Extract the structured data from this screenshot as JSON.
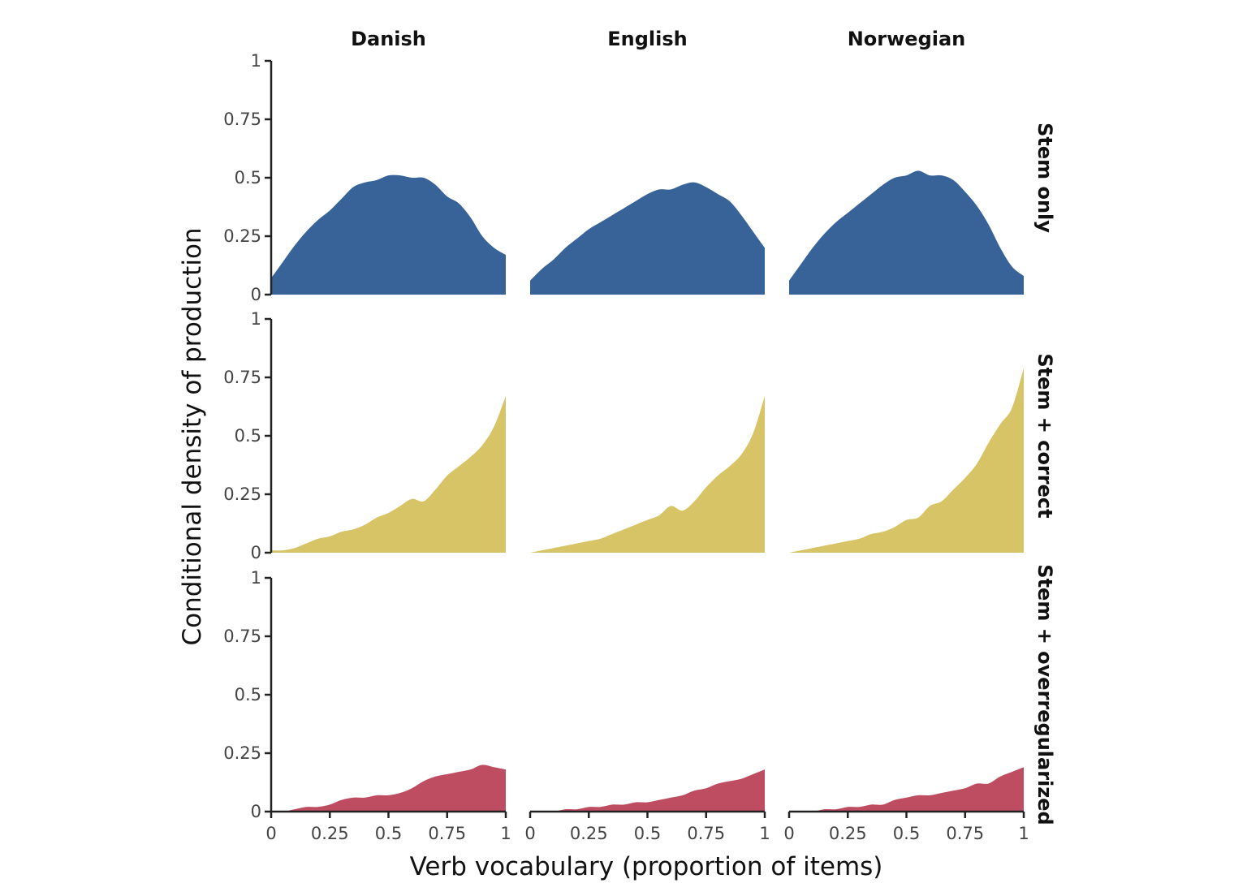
{
  "chart_data": {
    "type": "area",
    "subtype": "conditional density plot, faceted",
    "xlabel": "Verb vocabulary (proportion of items)",
    "ylabel": "Conditional density of production",
    "xlim": [
      0,
      1
    ],
    "ylim": [
      0,
      1
    ],
    "x_ticks": [
      "0",
      "0.25",
      "0.5",
      "0.75",
      "1"
    ],
    "y_ticks": [
      "0",
      "0.25",
      "0.5",
      "0.75",
      "1"
    ],
    "columns": [
      "Danish",
      "English",
      "Norwegian"
    ],
    "rows": [
      {
        "label": "Stem only",
        "color": "#386399"
      },
      {
        "label": "Stem + correct",
        "color": "#d6c466"
      },
      {
        "label": "Stem + overregularized",
        "color": "#be4d62"
      }
    ],
    "grid": false,
    "legend": "none",
    "x": [
      0,
      0.05,
      0.1,
      0.15,
      0.2,
      0.25,
      0.3,
      0.35,
      0.4,
      0.45,
      0.5,
      0.55,
      0.6,
      0.65,
      0.7,
      0.75,
      0.8,
      0.85,
      0.9,
      0.95,
      1
    ],
    "panels": {
      "Stem only": {
        "Danish": [
          0.07,
          0.14,
          0.21,
          0.27,
          0.32,
          0.36,
          0.41,
          0.46,
          0.48,
          0.49,
          0.51,
          0.51,
          0.5,
          0.5,
          0.47,
          0.42,
          0.39,
          0.33,
          0.25,
          0.2,
          0.17
        ],
        "English": [
          0.06,
          0.11,
          0.15,
          0.2,
          0.24,
          0.28,
          0.31,
          0.34,
          0.37,
          0.4,
          0.43,
          0.45,
          0.45,
          0.47,
          0.48,
          0.46,
          0.43,
          0.4,
          0.34,
          0.27,
          0.2
        ],
        "Norwegian": [
          0.06,
          0.13,
          0.2,
          0.26,
          0.31,
          0.35,
          0.39,
          0.43,
          0.47,
          0.5,
          0.51,
          0.53,
          0.51,
          0.51,
          0.49,
          0.44,
          0.38,
          0.3,
          0.2,
          0.12,
          0.08
        ]
      },
      "Stem + correct": {
        "Danish": [
          0.01,
          0.01,
          0.02,
          0.04,
          0.06,
          0.07,
          0.09,
          0.1,
          0.12,
          0.15,
          0.17,
          0.2,
          0.23,
          0.22,
          0.27,
          0.33,
          0.37,
          0.41,
          0.46,
          0.54,
          0.67
        ],
        "English": [
          0.0,
          0.01,
          0.02,
          0.03,
          0.04,
          0.05,
          0.06,
          0.08,
          0.1,
          0.12,
          0.14,
          0.16,
          0.2,
          0.18,
          0.22,
          0.28,
          0.33,
          0.37,
          0.42,
          0.51,
          0.67
        ],
        "Norwegian": [
          0.0,
          0.01,
          0.02,
          0.03,
          0.04,
          0.05,
          0.06,
          0.08,
          0.09,
          0.11,
          0.14,
          0.15,
          0.2,
          0.22,
          0.27,
          0.32,
          0.38,
          0.47,
          0.55,
          0.62,
          0.79
        ]
      },
      "Stem + overregularized": {
        "Danish": [
          0.0,
          0.0,
          0.01,
          0.02,
          0.02,
          0.03,
          0.05,
          0.06,
          0.06,
          0.07,
          0.07,
          0.08,
          0.1,
          0.13,
          0.15,
          0.16,
          0.17,
          0.18,
          0.2,
          0.19,
          0.18
        ],
        "English": [
          0.0,
          0.0,
          0.0,
          0.01,
          0.01,
          0.02,
          0.02,
          0.03,
          0.03,
          0.04,
          0.04,
          0.05,
          0.06,
          0.07,
          0.09,
          0.1,
          0.12,
          0.13,
          0.14,
          0.16,
          0.18
        ],
        "Norwegian": [
          0.0,
          0.0,
          0.0,
          0.01,
          0.01,
          0.02,
          0.02,
          0.03,
          0.03,
          0.05,
          0.06,
          0.07,
          0.07,
          0.08,
          0.09,
          0.1,
          0.12,
          0.12,
          0.15,
          0.17,
          0.19
        ]
      }
    }
  }
}
